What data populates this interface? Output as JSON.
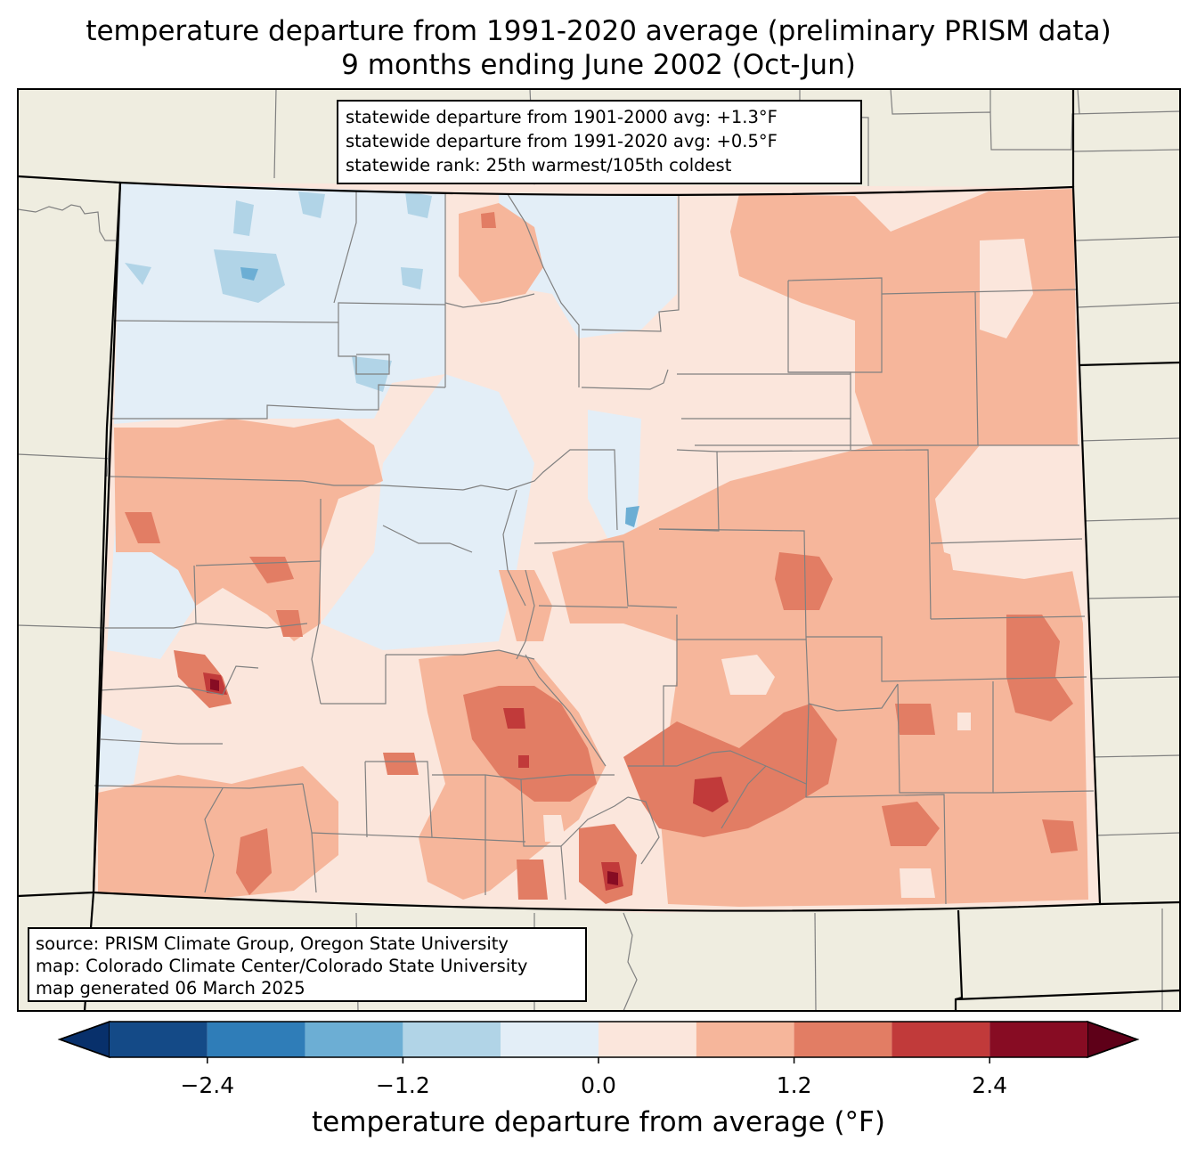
{
  "title": {
    "line1": "temperature departure from 1991-2020 average (preliminary PRISM data)",
    "line2": "9 months ending June 2002 (Oct-Jun)"
  },
  "stats": {
    "line1": "statewide departure from 1901-2000 avg: +1.3°F",
    "line2": "statewide departure from 1991-2020 avg: +0.5°F",
    "line3": "statewide rank: 25th warmest/105th coldest"
  },
  "source": {
    "line1": "source: PRISM Climate Group, Oregon State University",
    "line2": "map: Colorado Climate Center/Colorado State University",
    "line3": "map generated 06 March 2025"
  },
  "colorbar": {
    "label": "temperature departure from average (°F)",
    "ticks": [
      "−2.4",
      "−1.2",
      "0.0",
      "1.2",
      "2.4"
    ],
    "tick_values": [
      -2.4,
      -1.2,
      0.0,
      1.2,
      2.4
    ],
    "levels": [
      -3.0,
      -2.4,
      -1.8,
      -1.2,
      -0.6,
      0.0,
      0.6,
      1.2,
      1.8,
      2.4,
      3.0
    ],
    "colors": [
      "#08306b",
      "#144a87",
      "#2f7db8",
      "#6caed4",
      "#b1d4e7",
      "#e3eef7",
      "#fbe6dc",
      "#f6b69b",
      "#e27d64",
      "#c13a3a",
      "#870c23",
      "#5e0018"
    ]
  },
  "colors": {
    "land": "#efede0",
    "state_border": "#000000",
    "county_border": "#808080"
  }
}
